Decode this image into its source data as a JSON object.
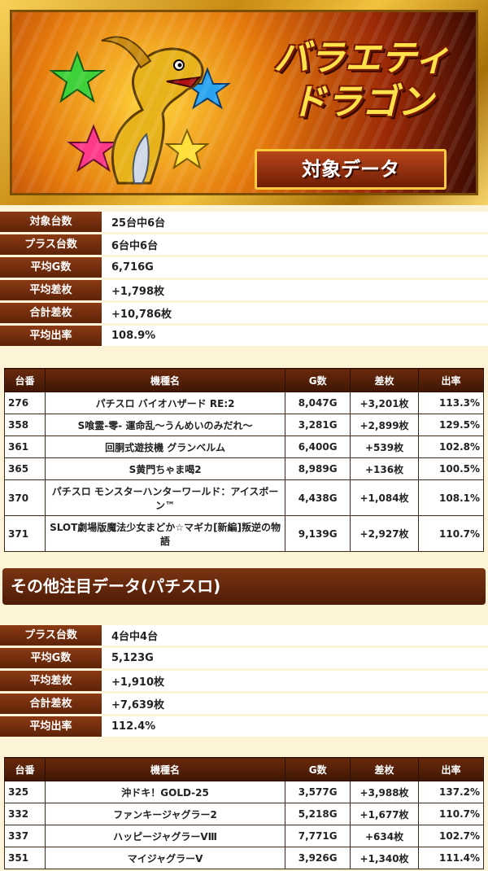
{
  "banner": {
    "title_line1": "バラエティ",
    "title_line2": "ドラゴン",
    "subtitle": "対象データ"
  },
  "summary1": [
    {
      "label": "対象台数",
      "value": "25台中6台"
    },
    {
      "label": "プラス台数",
      "value": "6台中6台"
    },
    {
      "label": "平均G数",
      "value": "6,716G"
    },
    {
      "label": "平均差枚",
      "value": "+1,798枚"
    },
    {
      "label": "合計差枚",
      "value": "+10,786枚"
    },
    {
      "label": "平均出率",
      "value": "108.9%"
    }
  ],
  "table_headers": {
    "number": "台番",
    "model": "機種名",
    "games": "G数",
    "diff": "差枚",
    "rate": "出率"
  },
  "table1": [
    {
      "number": "276",
      "model": "パチスロ バイオハザード RE:2",
      "games": "8,047G",
      "diff": "+3,201枚",
      "rate": "113.3%"
    },
    {
      "number": "358",
      "model": "S喰霊-零- 運命乱～うんめいのみだれ～",
      "games": "3,281G",
      "diff": "+2,899枚",
      "rate": "129.5%"
    },
    {
      "number": "361",
      "model": "回胴式遊技機 グランベルム",
      "games": "6,400G",
      "diff": "+539枚",
      "rate": "102.8%"
    },
    {
      "number": "365",
      "model": "S黄門ちゃま喝2",
      "games": "8,989G",
      "diff": "+136枚",
      "rate": "100.5%"
    },
    {
      "number": "370",
      "model": "パチスロ モンスターハンターワールド：アイスボーン™",
      "games": "4,438G",
      "diff": "+1,084枚",
      "rate": "108.1%"
    },
    {
      "number": "371",
      "model": "SLOT劇場版魔法少女まどか☆マギカ[新編]叛逆の物語",
      "games": "9,139G",
      "diff": "+2,927枚",
      "rate": "110.7%"
    }
  ],
  "section2": {
    "heading": "その他注目データ(パチスロ)"
  },
  "summary2": [
    {
      "label": "プラス台数",
      "value": "4台中4台"
    },
    {
      "label": "平均G数",
      "value": "5,123G"
    },
    {
      "label": "平均差枚",
      "value": "+1,910枚"
    },
    {
      "label": "合計差枚",
      "value": "+7,639枚"
    },
    {
      "label": "平均出率",
      "value": "112.4%"
    }
  ],
  "table2": [
    {
      "number": "325",
      "model": "沖ドキ！GOLD-25",
      "games": "3,577G",
      "diff": "+3,988枚",
      "rate": "137.2%"
    },
    {
      "number": "332",
      "model": "ファンキージャグラー2",
      "games": "5,218G",
      "diff": "+1,677枚",
      "rate": "110.7%"
    },
    {
      "number": "337",
      "model": "ハッピージャグラーVⅢ",
      "games": "7,771G",
      "diff": "+634枚",
      "rate": "102.7%"
    },
    {
      "number": "351",
      "model": "マイジャグラーV",
      "games": "3,926G",
      "diff": "+1,340枚",
      "rate": "111.4%"
    }
  ]
}
